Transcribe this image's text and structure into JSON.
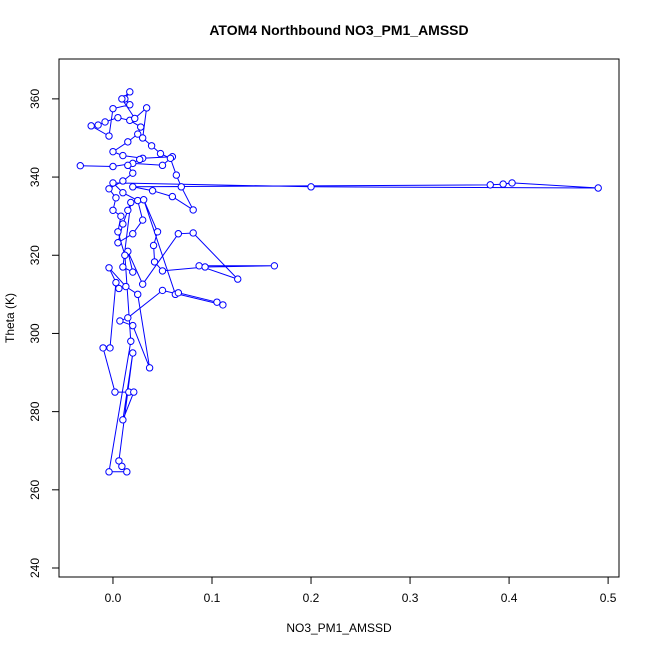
{
  "chart_data": {
    "type": "line",
    "title": "ATOM4 Northbound NO3_PM1_AMSSD",
    "x_label": "NO3_PM1_AMSSD",
    "y_label": "Theta (K)",
    "x": [
      -0.033,
      0.0,
      0.02,
      0.05,
      0.06,
      0.03,
      0.01,
      0.0,
      0.015,
      0.025,
      0.028,
      0.017,
      0.005,
      -0.008,
      -0.015,
      -0.022,
      -0.004,
      0.0,
      0.017,
      0.012,
      0.017,
      0.009,
      0.022,
      0.034,
      0.03,
      0.039,
      0.048,
      0.058,
      0.064,
      0.069,
      0.081,
      0.06,
      0.04,
      0.02,
      0.381,
      0.394,
      0.403,
      0.49,
      0.2,
      0.0,
      0.01,
      0.025,
      0.03,
      0.02,
      0.005,
      0.01,
      0.015,
      0.018,
      0.01,
      0.02,
      0.015,
      0.03,
      0.066,
      0.081,
      0.126,
      0.087,
      0.163,
      0.093,
      0.05,
      0.042,
      0.041,
      0.045,
      0.031,
      0.063,
      0.066,
      0.105,
      0.111,
      0.05,
      0.015,
      0.007,
      0.02,
      0.037,
      0.025,
      0.013,
      -0.004,
      0.006,
      0.003,
      -0.003,
      -0.01,
      0.002,
      0.016,
      0.021,
      0.01,
      0.02,
      0.006,
      0.009,
      0.014,
      -0.004,
      0.018,
      0.012,
      0.005,
      0.008,
      0.0,
      0.003,
      -0.004,
      0.01,
      0.02,
      0.015,
      0.027
    ],
    "series": [
      {
        "name": "NO3_PM1_AMSSD",
        "color": "#0000ff",
        "values": [
          342.9,
          342.7,
          343.5,
          343.0,
          345.2,
          344.8,
          345.5,
          346.5,
          349,
          351,
          352.8,
          354.5,
          355.2,
          354.1,
          353.3,
          353.1,
          350.5,
          357.5,
          358.5,
          360,
          361.8,
          360,
          355,
          357.7,
          350,
          348,
          346,
          344.8,
          340.5,
          337.5,
          331.6,
          335,
          336.5,
          337.5,
          338.0,
          338.2,
          338.5,
          337.2,
          337.5,
          338.5,
          336,
          334,
          329,
          325.5,
          323.2,
          328,
          331.5,
          333.5,
          317,
          315.7,
          321,
          312.6,
          325.5,
          325.7,
          313.9,
          317.3,
          317.3,
          317,
          316,
          318.3,
          322.5,
          326,
          334.2,
          310,
          310.4,
          308,
          307.3,
          311,
          304,
          303.2,
          302,
          291.2,
          310,
          312,
          316.8,
          311.5,
          313,
          296.3,
          296.3,
          285,
          285,
          285,
          277.9,
          295,
          267.4,
          266,
          264.6,
          264.6,
          298,
          320,
          326,
          330,
          331.5,
          334.7,
          337,
          339,
          341,
          343,
          344.5
        ]
      }
    ],
    "xlim": [
      -0.0545,
      0.511
    ],
    "ylim": [
      237.7,
      370.2
    ],
    "xticks": [
      {
        "value": 0,
        "label": "0.0"
      },
      {
        "value": 0.1,
        "label": "0.1"
      },
      {
        "value": 0.2,
        "label": "0.2"
      },
      {
        "value": 0.3,
        "label": "0.3"
      },
      {
        "value": 0.4,
        "label": "0.4"
      },
      {
        "value": 0.5,
        "label": "0.5"
      }
    ],
    "yticks": [
      240,
      260,
      280,
      300,
      320,
      340,
      360
    ]
  }
}
